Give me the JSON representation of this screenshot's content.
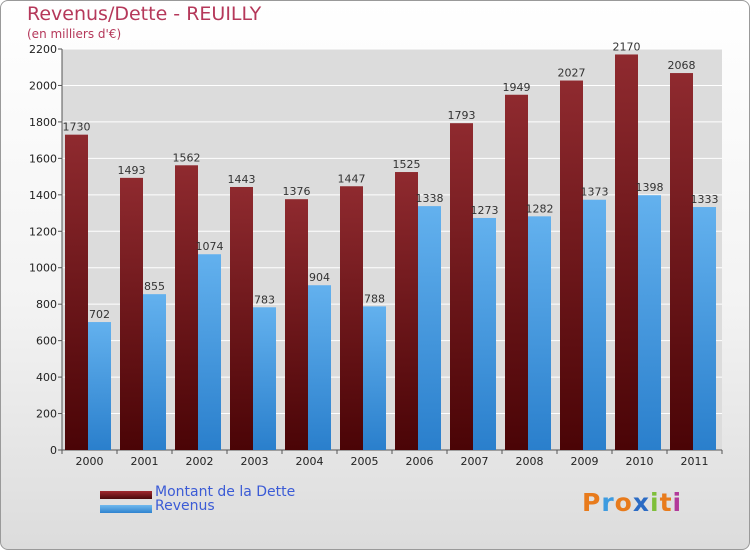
{
  "chart_data": {
    "type": "bar",
    "title": "Revenus/Dette - REUILLY",
    "subtitle": "(en milliers d'€)",
    "categories": [
      "2000",
      "2001",
      "2002",
      "2003",
      "2004",
      "2005",
      "2006",
      "2007",
      "2008",
      "2009",
      "2010",
      "2011"
    ],
    "series": [
      {
        "name": "Montant de la Dette",
        "values": [
          1730,
          1493,
          1562,
          1443,
          1376,
          1447,
          1525,
          1793,
          1949,
          2027,
          2170,
          2068
        ],
        "color": "#7a1e22"
      },
      {
        "name": "Revenus",
        "values": [
          702,
          855,
          1074,
          783,
          904,
          788,
          1338,
          1273,
          1282,
          1373,
          1398,
          1333
        ],
        "color": "#4fa3e6"
      }
    ],
    "ylim": [
      0,
      2200
    ],
    "yticks": [
      0,
      200,
      400,
      600,
      800,
      1000,
      1200,
      1400,
      1600,
      1800,
      2000,
      2200
    ],
    "grid": true,
    "legend_position": "bottom-left"
  },
  "legend": {
    "debt_label": "Montant de la Dette",
    "revenue_label": "Revenus"
  },
  "logo": {
    "letters": [
      "P",
      "r",
      "o",
      "x",
      "i",
      "t",
      "i"
    ],
    "colors": [
      "#e87b1c",
      "#3d9be0",
      "#e87b1c",
      "#2b6bc4",
      "#7fbf3a",
      "#e87b1c",
      "#b23a9a"
    ]
  }
}
